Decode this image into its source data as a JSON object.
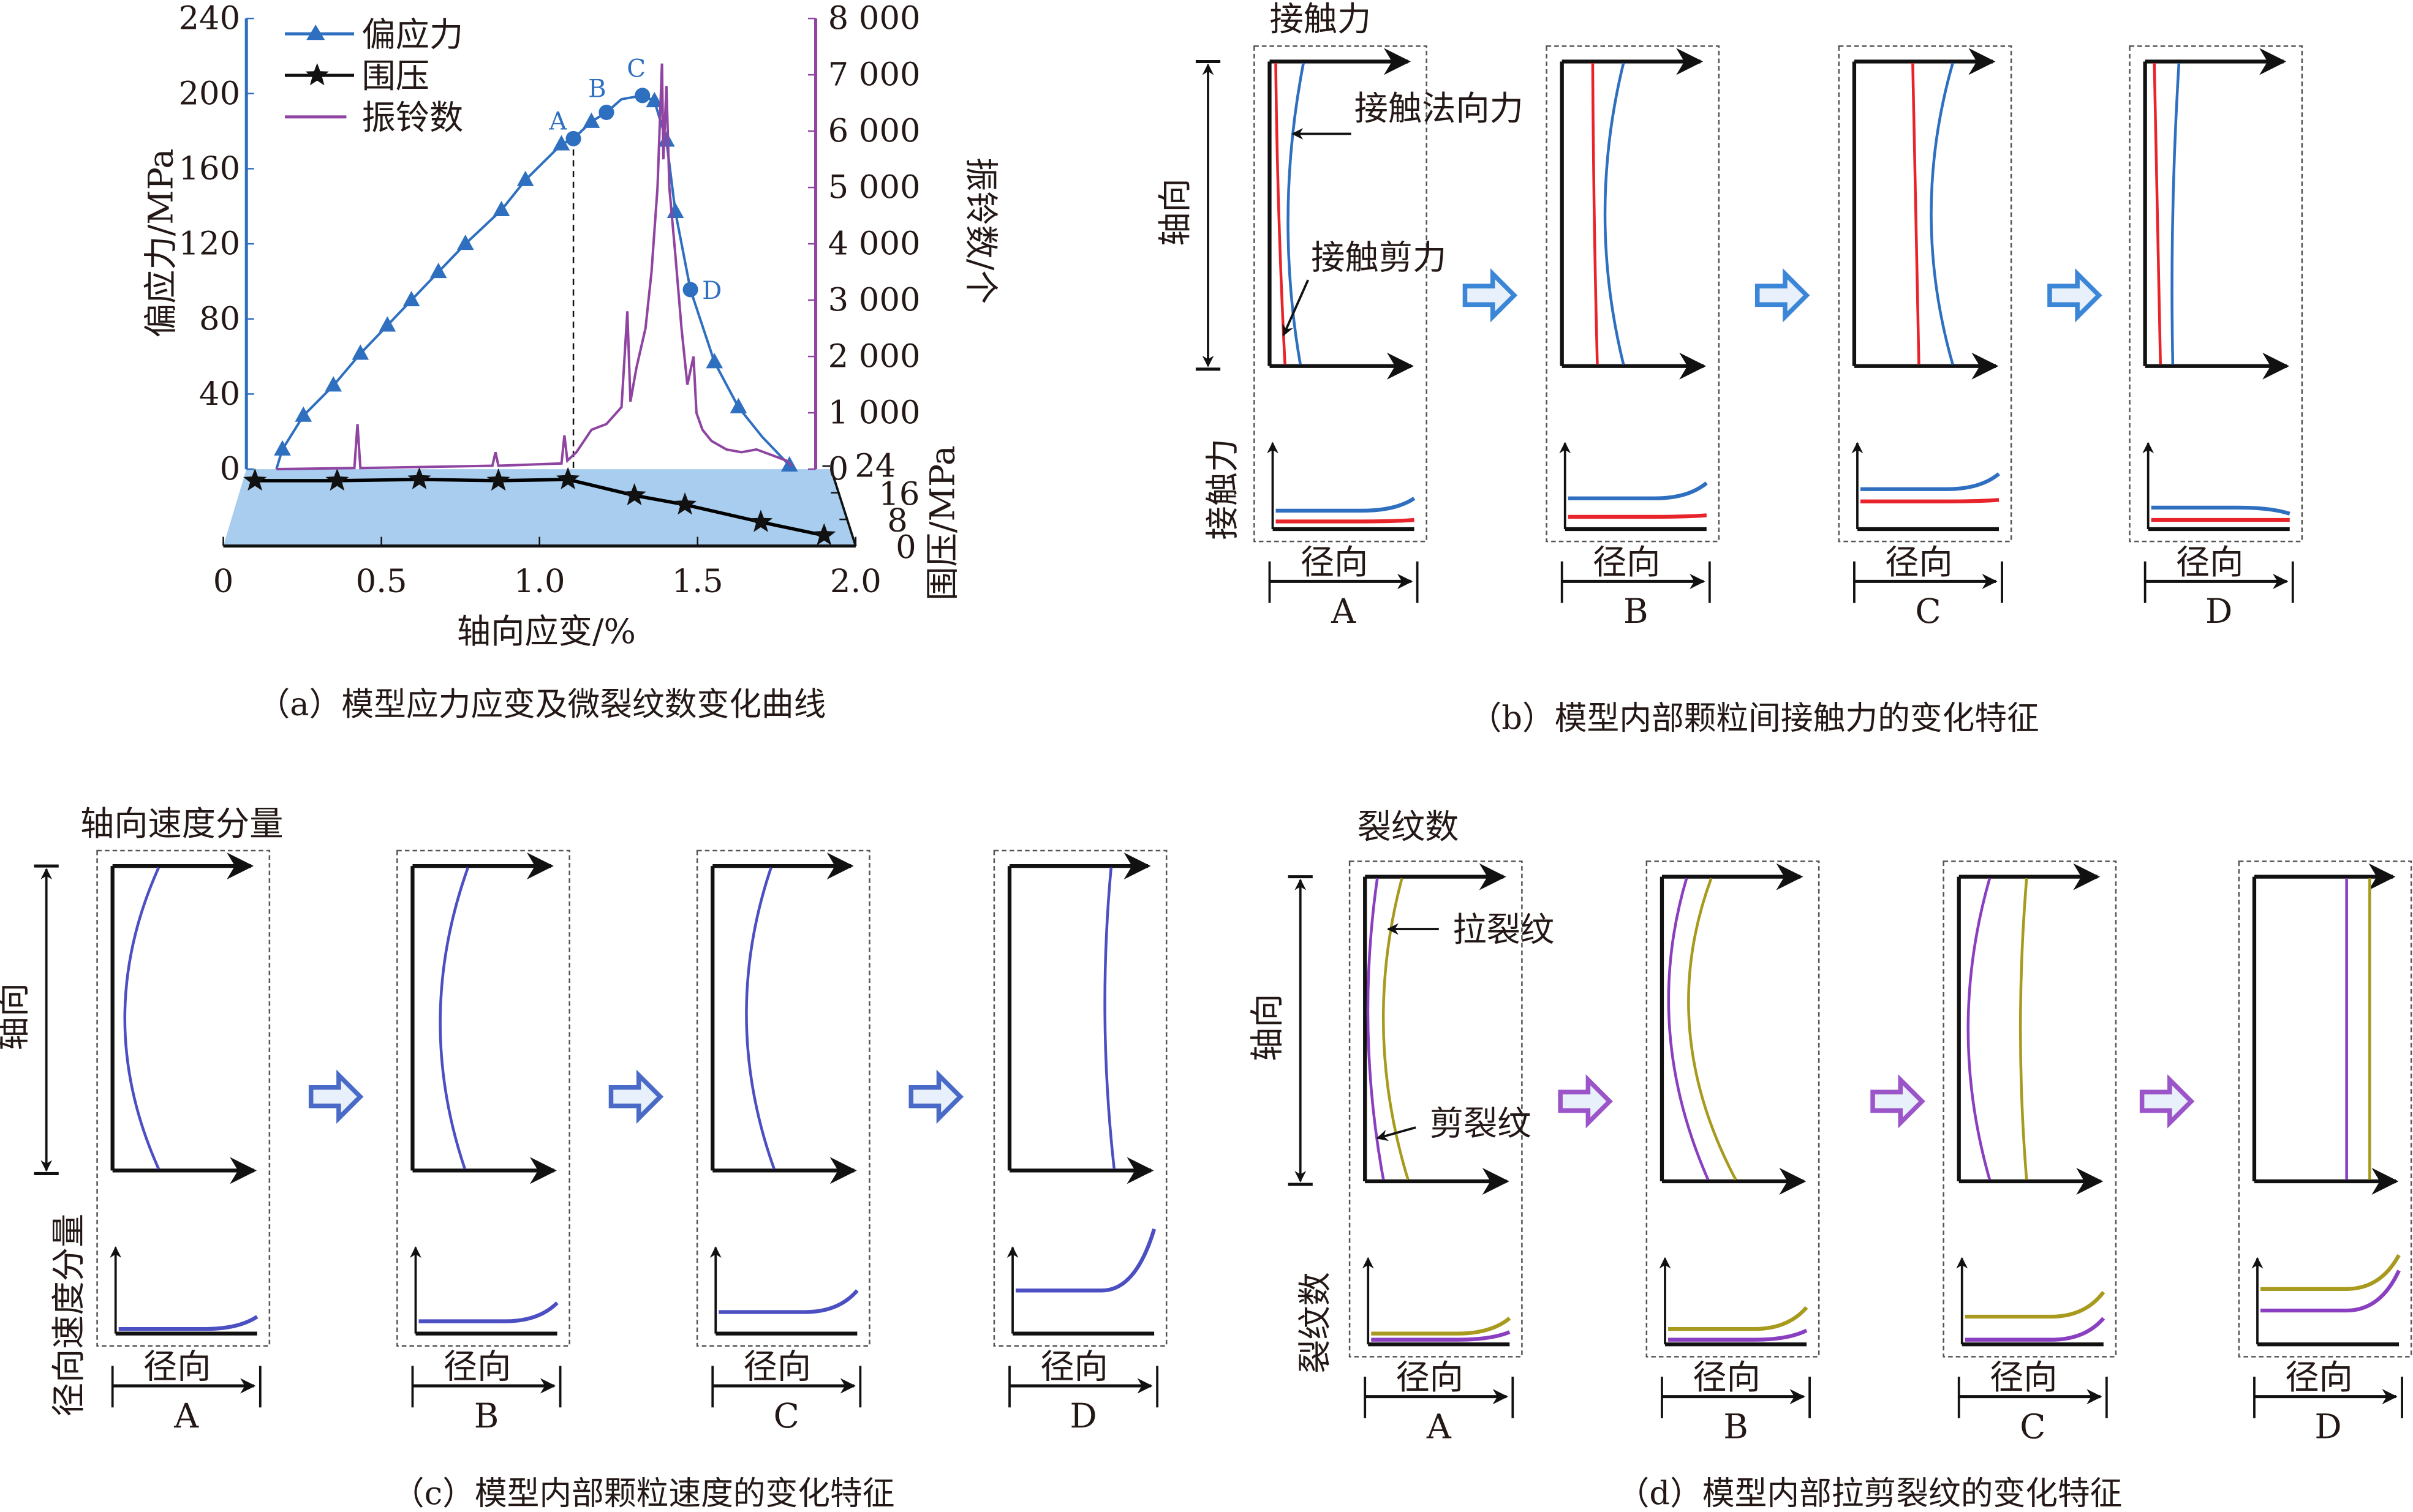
{
  "panel_a": {
    "caption": "（a）模型应力应变及微裂纹数变化曲线",
    "xlabel": "轴向应变/%",
    "ylabel_left": "偏应力/MPa",
    "ylabel_right": "振铃数/个",
    "ylabel_lower": "围压/MPa",
    "legend": [
      {
        "label": "偏应力",
        "marker": "triangle",
        "color": "#2e6fc0"
      },
      {
        "label": "围压",
        "marker": "star",
        "color": "#000000"
      },
      {
        "label": "振铃数",
        "marker": "line",
        "color": "#8e44a0"
      }
    ],
    "point_labels": [
      "A",
      "B",
      "C",
      "D"
    ]
  },
  "chart_data": {
    "type": "line",
    "x_ticks": [
      "0",
      "0.5",
      "1.0",
      "1.5",
      "2.0"
    ],
    "xlim": [
      0,
      2.0
    ],
    "y_left_ticks": [
      "0",
      "40",
      "80",
      "120",
      "160",
      "200",
      "240"
    ],
    "y_left_lim": [
      0,
      240
    ],
    "y_right_ticks": [
      "0",
      "1 000",
      "2 000",
      "3 000",
      "4 000",
      "5 000",
      "6 000",
      "7 000",
      "8 000"
    ],
    "y_right_lim": [
      0,
      8000
    ],
    "y_lower_ticks": [
      "0",
      "8",
      "16",
      "24"
    ],
    "y_lower_lim": [
      0,
      24
    ],
    "series": [
      {
        "name": "偏应力",
        "axis": "left",
        "color": "#2e6fc0",
        "x": [
          0.1,
          0.12,
          0.19,
          0.29,
          0.38,
          0.47,
          0.55,
          0.64,
          0.73,
          0.85,
          0.93,
          1.05,
          1.09,
          1.15,
          1.2,
          1.25,
          1.32,
          1.36,
          1.4,
          1.43,
          1.48,
          1.56,
          1.64,
          1.72,
          1.81
        ],
        "y": [
          0,
          10.5,
          28.5,
          44.6,
          61.5,
          76.5,
          90,
          105,
          120,
          138,
          154,
          173,
          176,
          185,
          190,
          197,
          199,
          196,
          175,
          137,
          95.6,
          57,
          33,
          17,
          2
        ]
      },
      {
        "name": "围压",
        "axis": "lower",
        "color": "#000000",
        "x": [
          0.1,
          0.36,
          0.62,
          0.87,
          1.09,
          1.3,
          1.46,
          1.7,
          1.9
        ],
        "y": [
          19.6,
          19.6,
          20.0,
          19.6,
          20.0,
          15.2,
          12.4,
          7.2,
          3.2
        ]
      },
      {
        "name": "振铃数",
        "axis": "right",
        "color": "#8e44a0",
        "x": [
          0.1,
          0.36,
          0.37,
          0.38,
          0.82,
          0.83,
          0.84,
          1.05,
          1.06,
          1.07,
          1.1,
          1.15,
          1.2,
          1.25,
          1.27,
          1.28,
          1.3,
          1.33,
          1.35,
          1.37,
          1.385,
          1.39,
          1.4,
          1.41,
          1.43,
          1.45,
          1.47,
          1.49,
          1.5,
          1.52,
          1.55,
          1.6,
          1.65,
          1.7,
          1.75,
          1.8,
          1.82
        ],
        "y": [
          0,
          20,
          800,
          20,
          60,
          300,
          60,
          100,
          600,
          150,
          300,
          700,
          800,
          1100,
          2800,
          1200,
          1800,
          2500,
          3500,
          5000,
          7200,
          5500,
          6800,
          5000,
          3800,
          2500,
          1500,
          2000,
          1000,
          700,
          500,
          350,
          300,
          350,
          250,
          150,
          50
        ]
      }
    ],
    "annotations": [
      {
        "label": "A",
        "x": 1.09,
        "y": 176
      },
      {
        "label": "B",
        "x": 1.2,
        "y": 190
      },
      {
        "label": "C",
        "x": 1.32,
        "y": 199
      },
      {
        "label": "D",
        "x": 1.48,
        "y": 95.6
      }
    ],
    "reference_line": {
      "x": 1.09,
      "style": "dashed"
    },
    "grid": false
  },
  "panel_b": {
    "caption": "（b）模型内部颗粒间接触力的变化特征",
    "title": "接触力",
    "axial": "轴向",
    "lower_ylabel": "接触力",
    "radial": "径向",
    "normal_label": "接触法向力",
    "shear_label": "接触剪力",
    "stages": [
      "A",
      "B",
      "C",
      "D"
    ],
    "colors": {
      "normal": "#2e6fc0",
      "shear": "#e8232a",
      "arrow": "#3b86d6"
    }
  },
  "panel_c": {
    "caption": "（c）模型内部颗粒速度的变化特征",
    "title": "轴向速度分量",
    "axial": "轴向",
    "lower_ylabel": "径向速度分量",
    "radial": "径向",
    "stages": [
      "A",
      "B",
      "C",
      "D"
    ],
    "colors": {
      "curve": "#4b4fc2",
      "arrow": "#4a6ac8"
    }
  },
  "panel_d": {
    "caption": "（d）模型内部拉剪裂纹的变化特征",
    "title": "裂纹数",
    "axial": "轴向",
    "lower_ylabel": "裂纹数",
    "radial": "径向",
    "tension_label": "拉裂纹",
    "shear_label": "剪裂纹",
    "stages": [
      "A",
      "B",
      "C",
      "D"
    ],
    "colors": {
      "tension": "#a89a1e",
      "shear": "#8a3fc0",
      "arrow": "#9b55c8"
    }
  }
}
